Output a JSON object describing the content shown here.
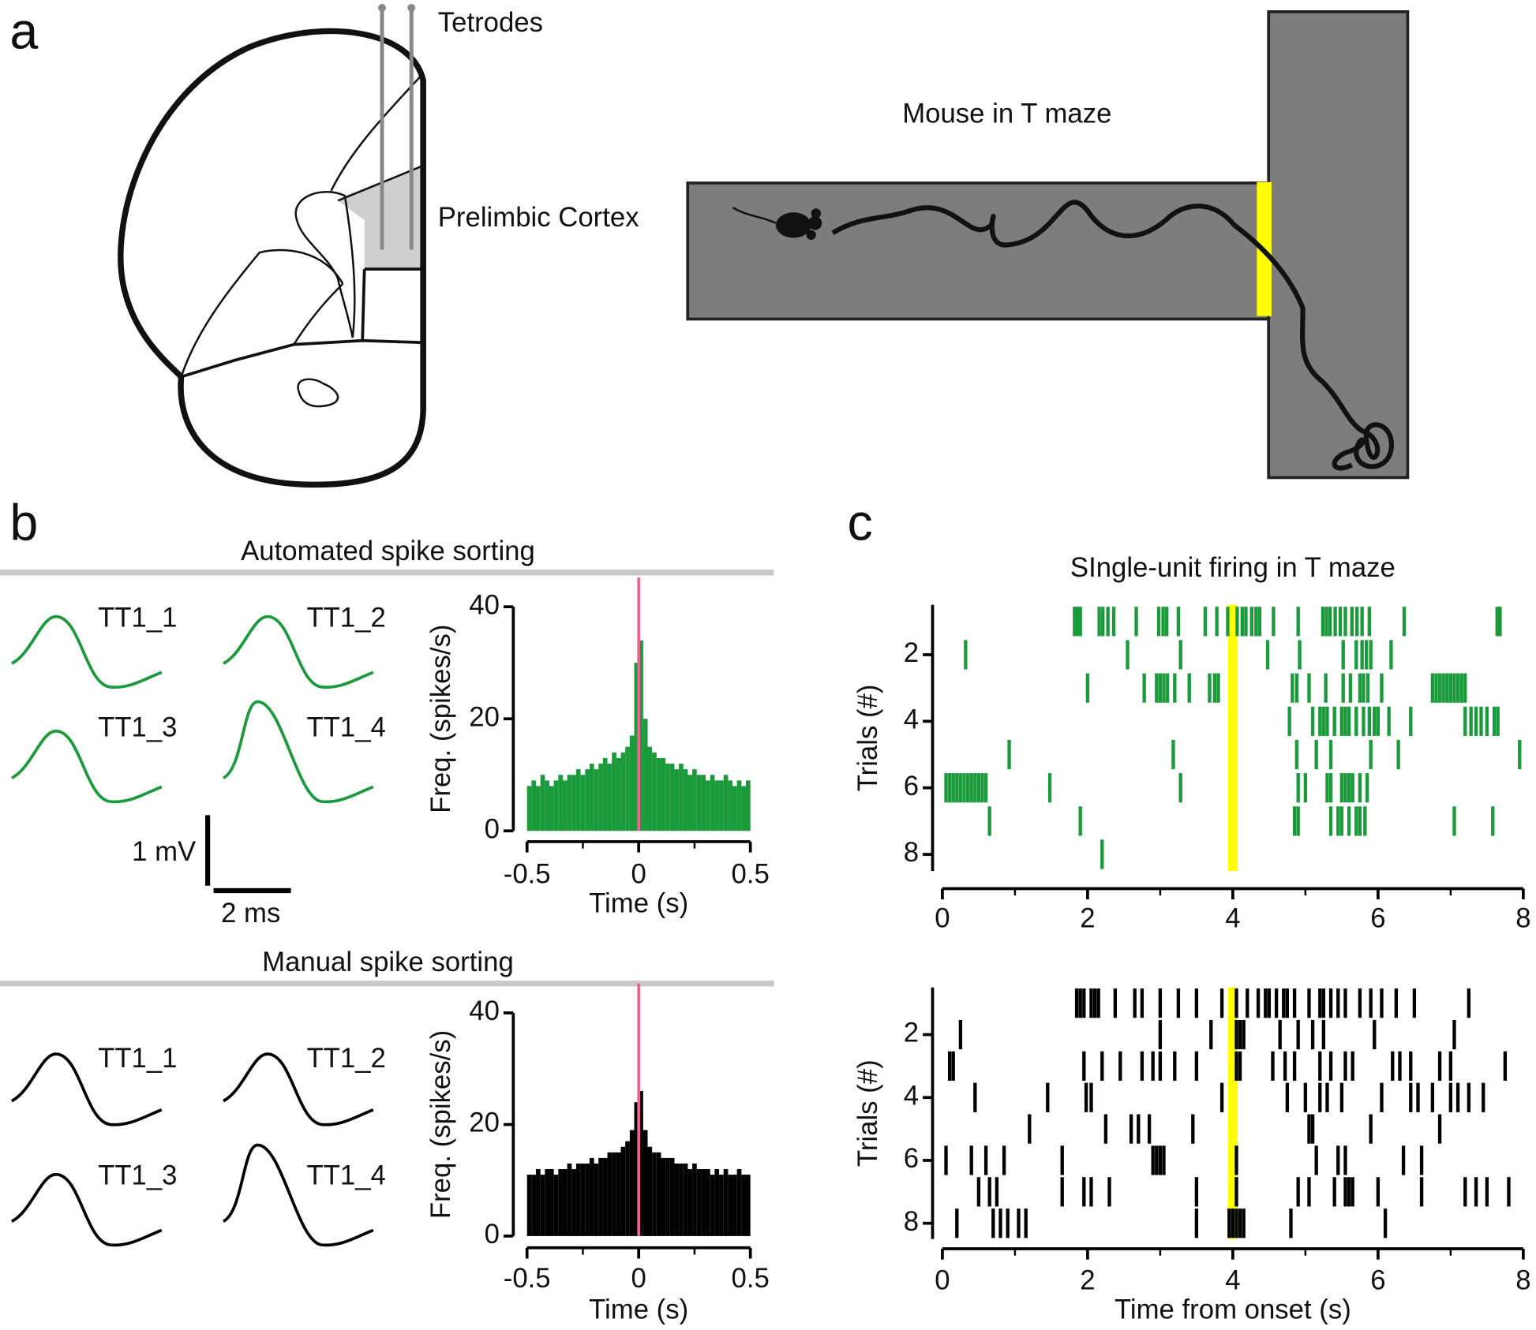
{
  "figure": {
    "panels": [
      "a",
      "b",
      "c"
    ],
    "diagram": {
      "tetrodes": "Tetrodes",
      "region": "Prelimbic Cortex",
      "maze": "Mouse in T maze"
    },
    "sections": [
      "Automated spike sorting",
      "Manual spike sorting"
    ],
    "waveform_labels": [
      "TT1_1",
      "TT1_2",
      "TT1_3",
      "TT1_4"
    ],
    "scale_bar": {
      "voltage": "1 mV",
      "time": "2 ms"
    }
  },
  "chart_data": [
    {
      "type": "histogram",
      "color": "#1a9a3a",
      "xlabel": "Time (s)",
      "ylabel": "Freq. (spikes/s)",
      "bins": [
        -0.5,
        -0.48,
        -0.46,
        -0.44,
        -0.42,
        -0.4,
        -0.38,
        -0.36,
        -0.34,
        -0.32,
        -0.3,
        -0.28,
        -0.26,
        -0.24,
        -0.22,
        -0.2,
        -0.18,
        -0.16,
        -0.14,
        -0.12,
        -0.1,
        -0.08,
        -0.06,
        -0.04,
        -0.02,
        0,
        0.02,
        0.04,
        0.06,
        0.08,
        0.1,
        0.12,
        0.14,
        0.16,
        0.18,
        0.2,
        0.22,
        0.24,
        0.26,
        0.28,
        0.3,
        0.32,
        0.34,
        0.36,
        0.38,
        0.4,
        0.42,
        0.44,
        0.46,
        0.48,
        0.5
      ],
      "values": [
        8,
        9,
        8,
        10,
        9,
        8,
        9,
        10,
        9,
        10,
        10,
        11,
        10,
        11,
        12,
        11,
        12,
        13,
        12,
        14,
        13,
        14,
        15,
        17,
        30,
        34,
        20,
        15,
        14,
        13,
        13,
        12,
        12,
        11,
        12,
        11,
        10,
        11,
        10,
        10,
        9,
        10,
        9,
        9,
        10,
        9,
        8,
        9,
        8,
        9
      ],
      "marker": {
        "x": 0,
        "color": "#f06292"
      },
      "xlim": [
        -0.5,
        0.5
      ],
      "xticks": [
        -0.5,
        0,
        0.5
      ],
      "xminorticks": [
        -0.25,
        0.25
      ],
      "ylim": [
        0,
        40
      ],
      "yticks": [
        0,
        20,
        40
      ]
    },
    {
      "type": "raster",
      "color": "#1a9a3a",
      "title": "SIngle-unit firing in T maze",
      "ylabel": "Trials (#)",
      "trials": [
        [
          1.82,
          1.86,
          1.9,
          2.16,
          2.21,
          2.28,
          2.36,
          2.67,
          2.98,
          3.04,
          3.09,
          3.25,
          3.62,
          3.78,
          3.93,
          4.06,
          4.13,
          4.18,
          4.26,
          4.32,
          4.37,
          4.56,
          4.9,
          5.24,
          5.29,
          5.34,
          5.41,
          5.48,
          5.55,
          5.64,
          5.71,
          5.78,
          5.88,
          6.36,
          7.64,
          7.68
        ],
        [
          0.32,
          2.55,
          3.28,
          4.48,
          4.92,
          5.52,
          5.7,
          5.78,
          5.84,
          5.9,
          6.18
        ],
        [
          2.0,
          2.78,
          2.95,
          3.0,
          3.05,
          3.1,
          3.2,
          3.4,
          3.68,
          3.75,
          3.8,
          4.82,
          4.88,
          5.05,
          5.28,
          5.52,
          5.62,
          5.75,
          5.8,
          5.86,
          6.05,
          6.75,
          6.8,
          6.85,
          6.9,
          6.95,
          7.0,
          7.05,
          7.1,
          7.15,
          7.2
        ],
        [
          4.78,
          5.1,
          5.2,
          5.25,
          5.3,
          5.4,
          5.5,
          5.55,
          5.6,
          5.7,
          5.8,
          5.88,
          5.95,
          6.0,
          6.15,
          6.45,
          7.2,
          7.28,
          7.35,
          7.42,
          7.5,
          7.6,
          7.65
        ],
        [
          0.92,
          3.18,
          4.88,
          5.15,
          5.35,
          5.9,
          6.28,
          7.95
        ],
        [
          0.05,
          0.1,
          0.15,
          0.2,
          0.25,
          0.3,
          0.35,
          0.4,
          0.45,
          0.5,
          0.55,
          0.6,
          1.48,
          3.28,
          4.9,
          5.0,
          5.3,
          5.35,
          5.5,
          5.55,
          5.6,
          5.65,
          5.75,
          5.85
        ],
        [
          0.65,
          1.9,
          4.85,
          4.9,
          5.35,
          5.45,
          5.5,
          5.6,
          5.7,
          5.75,
          5.82,
          7.05,
          7.58
        ],
        [
          2.2
        ]
      ],
      "highlight": {
        "x": 4,
        "color": "#ffff00"
      },
      "xlim": [
        0,
        8
      ],
      "xticks": [
        0,
        2,
        4,
        6,
        8
      ],
      "xminorticks": [
        1,
        3,
        5,
        7
      ],
      "ylim": [
        8.5,
        0.5
      ],
      "yticks": [
        2,
        4,
        6,
        8
      ]
    },
    {
      "type": "histogram",
      "color": "#000000",
      "xlabel": "Time (s)",
      "ylabel": "Freq. (spikes/s)",
      "bins": [
        -0.5,
        -0.48,
        -0.46,
        -0.44,
        -0.42,
        -0.4,
        -0.38,
        -0.36,
        -0.34,
        -0.32,
        -0.3,
        -0.28,
        -0.26,
        -0.24,
        -0.22,
        -0.2,
        -0.18,
        -0.16,
        -0.14,
        -0.12,
        -0.1,
        -0.08,
        -0.06,
        -0.04,
        -0.02,
        0,
        0.02,
        0.04,
        0.06,
        0.08,
        0.1,
        0.12,
        0.14,
        0.16,
        0.18,
        0.2,
        0.22,
        0.24,
        0.26,
        0.28,
        0.3,
        0.32,
        0.34,
        0.36,
        0.38,
        0.4,
        0.42,
        0.44,
        0.46,
        0.48,
        0.5
      ],
      "values": [
        11,
        11,
        12,
        11,
        12,
        12,
        11,
        12,
        12,
        13,
        12,
        13,
        13,
        13,
        14,
        13,
        14,
        14,
        15,
        15,
        15,
        16,
        17,
        19,
        24,
        26,
        19,
        16,
        15,
        15,
        14,
        14,
        14,
        13,
        13,
        13,
        12,
        13,
        12,
        12,
        12,
        11,
        12,
        11,
        12,
        11,
        11,
        12,
        11,
        11
      ],
      "marker": {
        "x": 0,
        "color": "#f06292"
      },
      "xlim": [
        -0.5,
        0.5
      ],
      "xticks": [
        -0.5,
        0,
        0.5
      ],
      "xminorticks": [
        -0.25,
        0.25
      ],
      "ylim": [
        0,
        40
      ],
      "yticks": [
        0,
        20,
        40
      ]
    },
    {
      "type": "raster",
      "color": "#000000",
      "xlabel": "Time from onset (s)",
      "ylabel": "Trials (#)",
      "trials": [
        [
          1.85,
          1.9,
          1.95,
          2.05,
          2.1,
          2.15,
          2.38,
          2.65,
          2.75,
          3.0,
          3.25,
          3.5,
          3.85,
          4.05,
          4.2,
          4.35,
          4.45,
          4.5,
          4.6,
          4.7,
          4.75,
          4.85,
          5.05,
          5.2,
          5.25,
          5.35,
          5.45,
          5.55,
          5.75,
          5.9,
          6.05,
          6.25,
          6.5,
          7.25
        ],
        [
          0.25,
          3.0,
          3.7,
          4.05,
          4.1,
          4.15,
          4.65,
          4.9,
          5.1,
          5.25,
          5.95,
          7.05
        ],
        [
          0.1,
          0.15,
          1.95,
          2.2,
          2.45,
          2.75,
          2.9,
          3.0,
          3.2,
          3.5,
          4.05,
          4.1,
          4.55,
          4.72,
          4.85,
          5.2,
          5.35,
          5.55,
          5.65,
          6.2,
          6.3,
          6.45,
          6.85,
          7.0,
          7.75
        ],
        [
          0.45,
          1.45,
          1.98,
          2.05,
          3.85,
          4.75,
          5.0,
          5.2,
          5.3,
          5.5,
          6.05,
          6.45,
          6.55,
          6.75,
          7.0,
          7.1,
          7.25,
          7.45
        ],
        [
          1.2,
          2.25,
          2.6,
          2.7,
          2.85,
          3.45,
          5.05,
          5.1,
          5.9,
          6.85
        ],
        [
          0.05,
          0.4,
          0.6,
          0.85,
          1.65,
          2.9,
          2.95,
          3.0,
          3.05,
          4.05,
          5.15,
          5.45,
          5.55,
          6.35,
          6.6
        ],
        [
          0.5,
          0.65,
          0.75,
          1.65,
          1.95,
          2.05,
          2.3,
          3.5,
          4.05,
          4.9,
          5.05,
          5.4,
          5.55,
          5.6,
          5.65,
          6.0,
          6.6,
          7.2,
          7.35,
          7.5,
          7.8
        ],
        [
          0.2,
          0.7,
          0.8,
          0.9,
          1.05,
          1.15,
          3.5,
          3.95,
          4.0,
          4.05,
          4.1,
          4.15,
          4.8,
          6.1
        ]
      ],
      "highlight": {
        "x": 4,
        "color": "#ffff00"
      },
      "xlim": [
        0,
        8
      ],
      "xticks": [
        0,
        2,
        4,
        6,
        8
      ],
      "xminorticks": [
        1,
        3,
        5,
        7
      ],
      "ylim": [
        8.5,
        0.5
      ],
      "yticks": [
        2,
        4,
        6,
        8
      ]
    }
  ]
}
